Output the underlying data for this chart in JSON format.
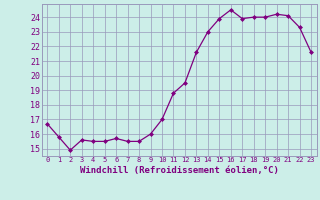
{
  "all_x": [
    0,
    1,
    2,
    3,
    4,
    5,
    6,
    7,
    8,
    9,
    10,
    11,
    12,
    13,
    14,
    15,
    16,
    17,
    18,
    19,
    20,
    21,
    22,
    23
  ],
  "all_y": [
    16.7,
    15.8,
    14.9,
    15.6,
    15.5,
    15.5,
    15.7,
    15.5,
    15.5,
    16.0,
    17.0,
    18.8,
    19.5,
    21.6,
    23.0,
    23.9,
    24.5,
    23.9,
    24.0,
    24.0,
    24.2,
    24.1,
    23.3,
    21.6
  ],
  "line_color": "#800080",
  "marker": "D",
  "marker_size": 2.0,
  "background_color": "#cceee8",
  "grid_color": "#9999bb",
  "xlabel": "Windchill (Refroidissement éolien,°C)",
  "ylabel_ticks": [
    15,
    16,
    17,
    18,
    19,
    20,
    21,
    22,
    23,
    24
  ],
  "xlim": [
    -0.5,
    23.5
  ],
  "ylim": [
    14.5,
    24.9
  ]
}
